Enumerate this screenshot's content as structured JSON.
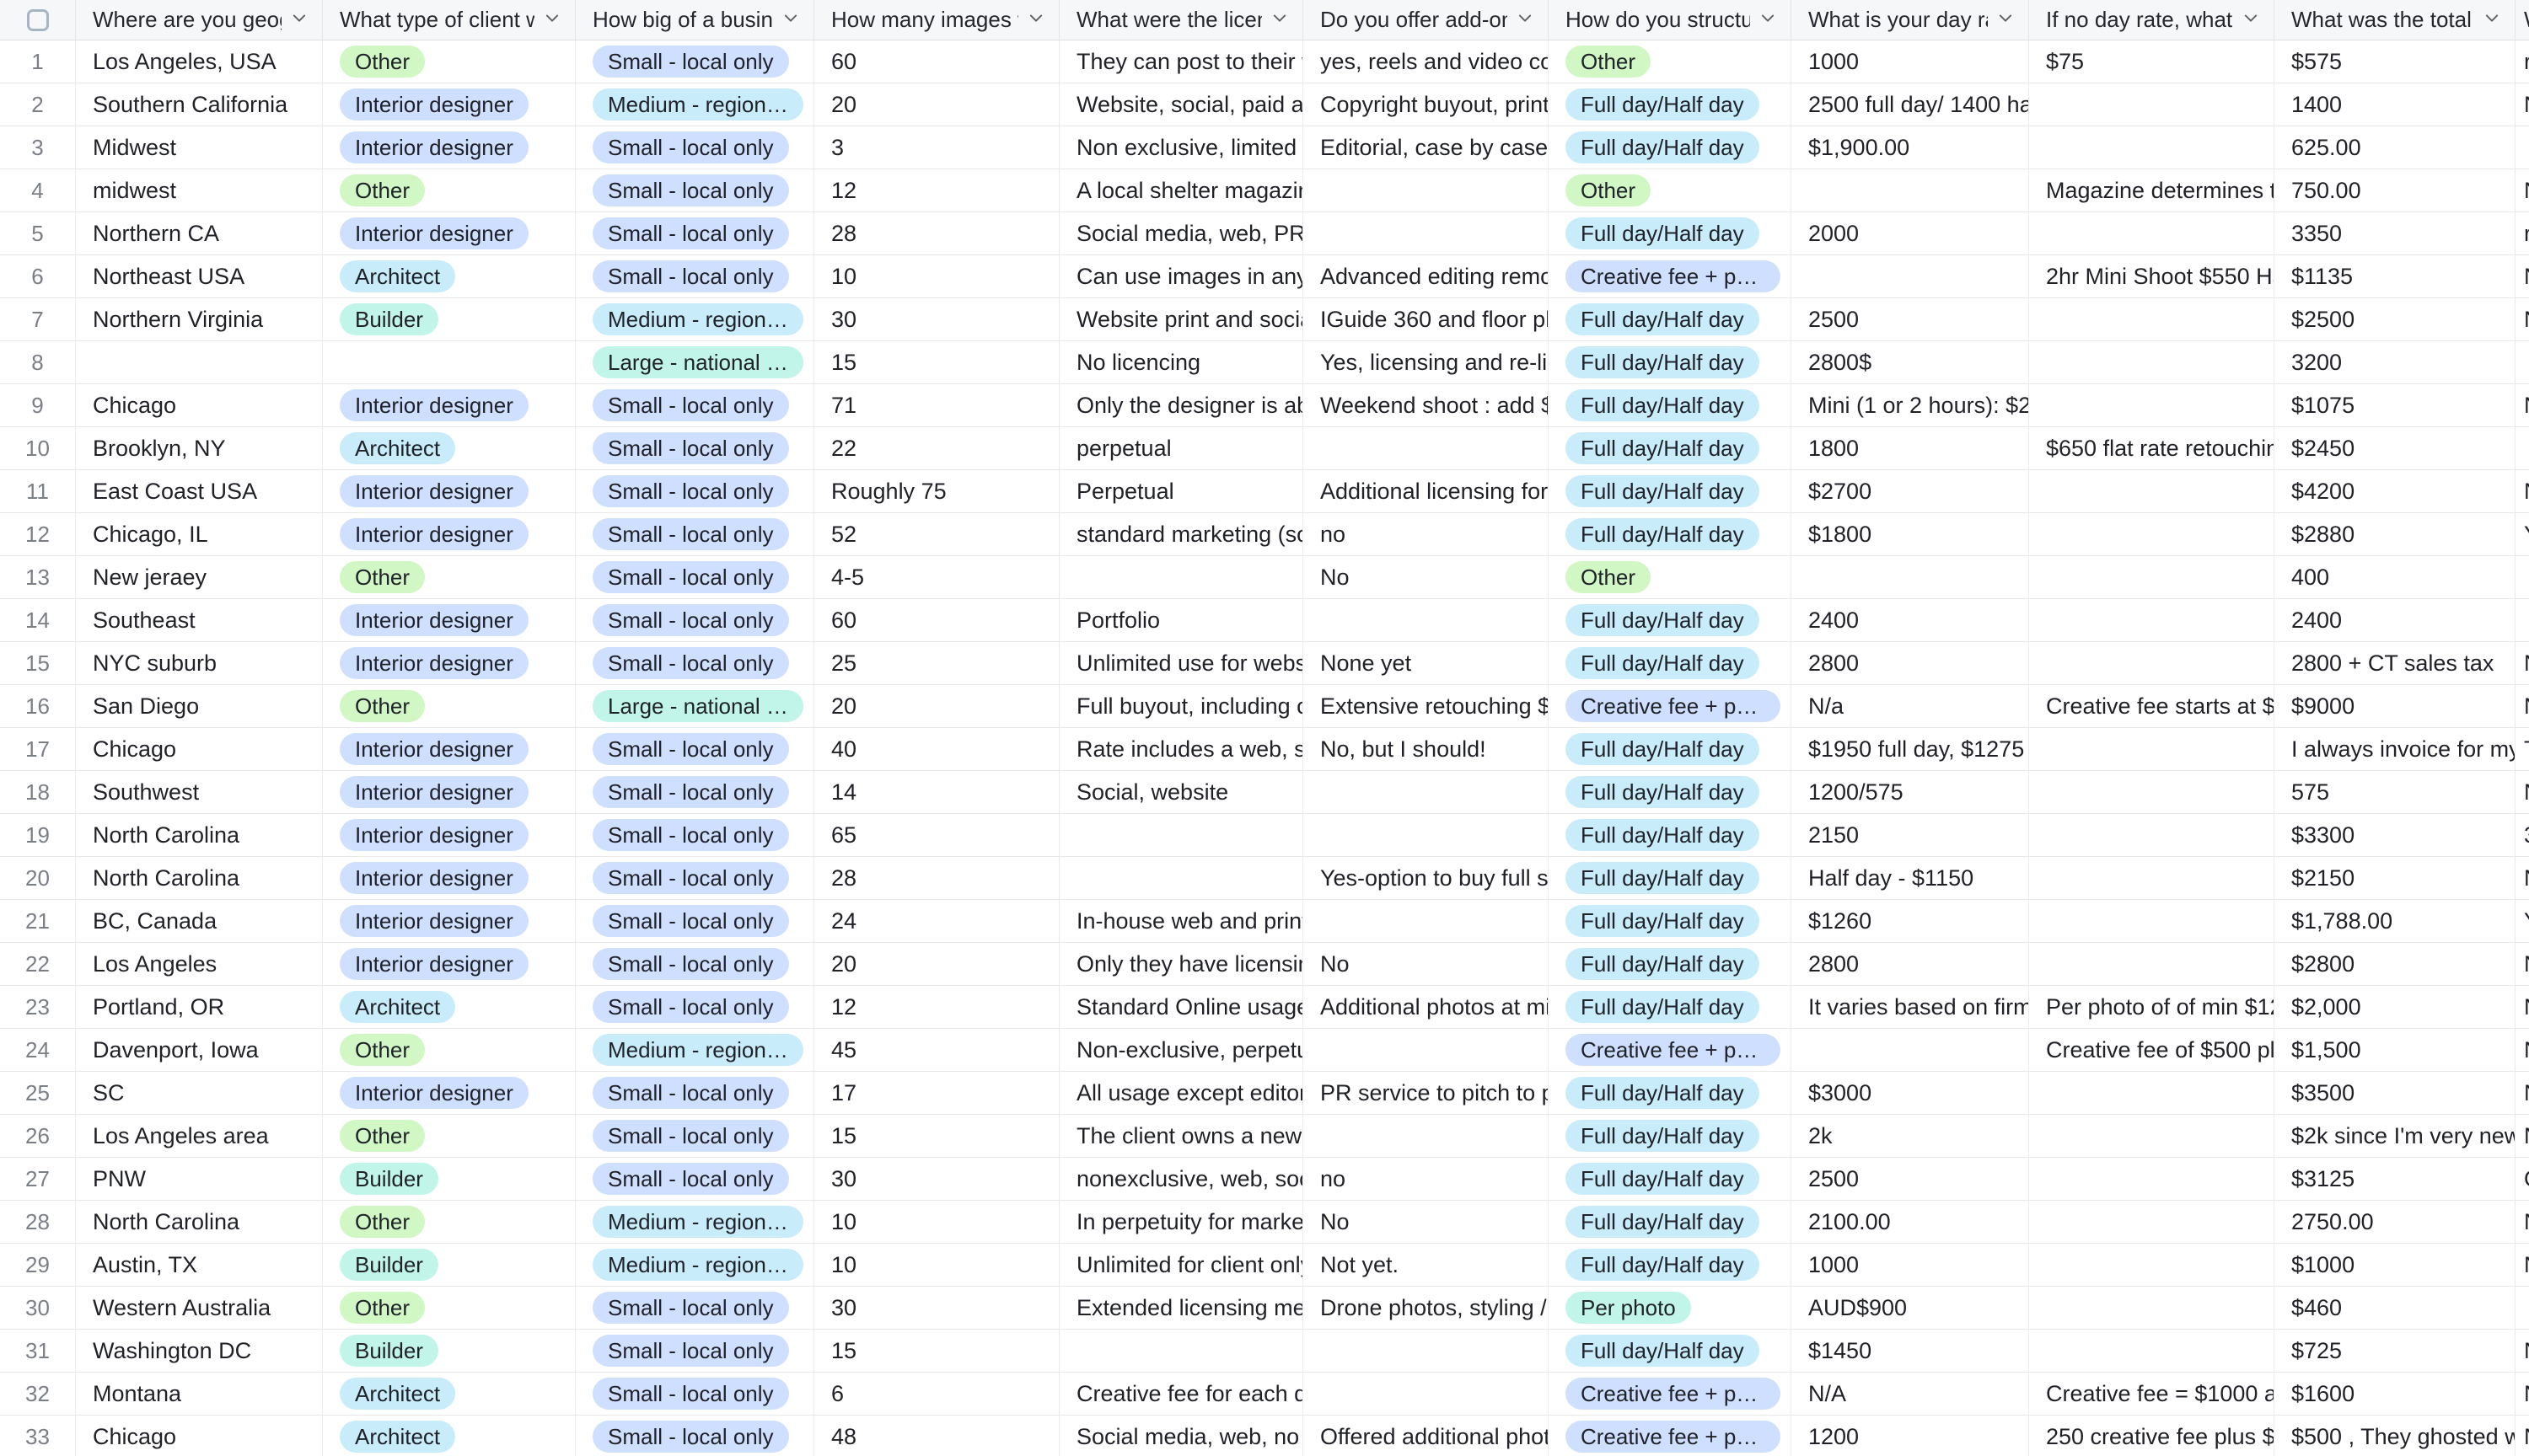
{
  "table": {
    "columns": [
      {
        "key": "num",
        "label": ""
      },
      {
        "key": "geo",
        "label": "Where are you geogra..."
      },
      {
        "key": "client",
        "label": "What type of client wa..."
      },
      {
        "key": "size",
        "label": "How big of a business ..."
      },
      {
        "key": "images",
        "label": "How many images wer..."
      },
      {
        "key": "licensing",
        "label": "What were the licensin..."
      },
      {
        "key": "addons",
        "label": "Do you offer add-ons? ..."
      },
      {
        "key": "structure",
        "label": "How do you structure t..."
      },
      {
        "key": "day_rate",
        "label": "What is your day rate?"
      },
      {
        "key": "no_day_rate",
        "label": "If no day rate, what is ..."
      },
      {
        "key": "total",
        "label": "What was the total inv..."
      },
      {
        "key": "last",
        "label": "W"
      }
    ],
    "badge_colors": {
      "green": "#d1f7c4",
      "blue": "#cfdfff",
      "cyan": "#c9ecfb",
      "teal": "#c2f5e9"
    },
    "badge_color_by_label": {
      "Other": "green",
      "Interior designer": "blue",
      "Architect": "cyan",
      "Builder": "teal",
      "Small - local only": "blue",
      "Medium - regional offi...": "cyan",
      "Large - national presen...": "teal",
      "Full day/Half day": "cyan",
      "Creative fee + per photo": "blue",
      "Per photo": "teal"
    },
    "rows": [
      {
        "num": "1",
        "geo": "Los Angeles, USA",
        "client": "Other",
        "size": "Small - local only",
        "images": "60",
        "licensing": "They can post to their we...",
        "addons": "yes, reels and video cont...",
        "structure": "Other",
        "day_rate": "1000",
        "no_day_rate": "$75",
        "total": "$575",
        "last": "r"
      },
      {
        "num": "2",
        "geo": "Southern California",
        "client": "Interior designer",
        "size": "Medium - regional offi...",
        "images": "20",
        "licensing": "Website, social, paid ads,...",
        "addons": "Copyright buyout, print p...",
        "structure": "Full day/Half day",
        "day_rate": "2500 full day/ 1400 half d...",
        "no_day_rate": "",
        "total": "1400",
        "last": "N"
      },
      {
        "num": "3",
        "geo": "Midwest",
        "client": "Interior designer",
        "size": "Small - local only",
        "images": "3",
        "licensing": "Non exclusive, limited usa...",
        "addons": "Editorial, case by case ba...",
        "structure": "Full day/Half day",
        "day_rate": "$1,900.00",
        "no_day_rate": "",
        "total": "625.00",
        "last": ""
      },
      {
        "num": "4",
        "geo": "midwest",
        "client": "Other",
        "size": "Small - local only",
        "images": "12",
        "licensing": "A local shelter magazine. ...",
        "addons": "",
        "structure": "Other",
        "day_rate": "",
        "no_day_rate": "Magazine determines the...",
        "total": "750.00",
        "last": "N"
      },
      {
        "num": "5",
        "geo": "Northern CA",
        "client": "Interior designer",
        "size": "Small - local only",
        "images": "28",
        "licensing": "Social media, web, PR use",
        "addons": "",
        "structure": "Full day/Half day",
        "day_rate": "2000",
        "no_day_rate": "",
        "total": "3350",
        "last": "r"
      },
      {
        "num": "6",
        "geo": "Northeast USA",
        "client": "Architect",
        "size": "Small - local only",
        "images": "10",
        "licensing": "Can use images in any for...",
        "addons": "Advanced editing removi...",
        "structure": "Creative fee + per photo",
        "day_rate": "",
        "no_day_rate": "2hr Mini Shoot $550 Half ...",
        "total": "$1135",
        "last": "N"
      },
      {
        "num": "7",
        "geo": "Northern Virginia",
        "client": "Builder",
        "size": "Medium - regional offi...",
        "images": "30",
        "licensing": "Website print and social ...",
        "addons": "IGuide 360 and floor plans",
        "structure": "Full day/Half day",
        "day_rate": "2500",
        "no_day_rate": "",
        "total": "$2500",
        "last": "N"
      },
      {
        "num": "8",
        "geo": "",
        "client": "",
        "size": "Large - national presen...",
        "images": "15",
        "licensing": "No licencing",
        "addons": "Yes, licensing and re-lice...",
        "structure": "Full day/Half day",
        "day_rate": "2800$",
        "no_day_rate": "",
        "total": "3200",
        "last": ""
      },
      {
        "num": "9",
        "geo": "Chicago",
        "client": "Interior designer",
        "size": "Small - local only",
        "images": "71",
        "licensing": "Only the designer is able ...",
        "addons": "Weekend shoot : add $10...",
        "structure": "Full day/Half day",
        "day_rate": "Mini (1 or 2 hours): $275/...",
        "no_day_rate": "",
        "total": "$1075",
        "last": "N"
      },
      {
        "num": "10",
        "geo": "Brooklyn, NY",
        "client": "Architect",
        "size": "Small - local only",
        "images": "22",
        "licensing": "perpetual",
        "addons": "",
        "structure": "Full day/Half day",
        "day_rate": "1800",
        "no_day_rate": "$650 flat rate retouching",
        "total": "$2450",
        "last": ""
      },
      {
        "num": "11",
        "geo": "East Coast USA",
        "client": "Interior designer",
        "size": "Small - local only",
        "images": "Roughly 75",
        "licensing": "Perpetual",
        "addons": "Additional licensing for p...",
        "structure": "Full day/Half day",
        "day_rate": "$2700",
        "no_day_rate": "",
        "total": "$4200",
        "last": "N"
      },
      {
        "num": "12",
        "geo": "Chicago, IL",
        "client": "Interior designer",
        "size": "Small - local only",
        "images": "52",
        "licensing": "standard marketing (soci...",
        "addons": "no",
        "structure": "Full day/Half day",
        "day_rate": "$1800",
        "no_day_rate": "",
        "total": "$2880",
        "last": "Y"
      },
      {
        "num": "13",
        "geo": "New jeraey",
        "client": "Other",
        "size": "Small - local only",
        "images": "4-5",
        "licensing": "",
        "addons": "No",
        "structure": "Other",
        "day_rate": "",
        "no_day_rate": "",
        "total": "400",
        "last": ""
      },
      {
        "num": "14",
        "geo": "Southeast",
        "client": "Interior designer",
        "size": "Small - local only",
        "images": "60",
        "licensing": "Portfolio",
        "addons": "",
        "structure": "Full day/Half day",
        "day_rate": "2400",
        "no_day_rate": "",
        "total": "2400",
        "last": ""
      },
      {
        "num": "15",
        "geo": "NYC suburb",
        "client": "Interior designer",
        "size": "Small - local only",
        "images": "25",
        "licensing": "Unlimited use for website...",
        "addons": "None yet",
        "structure": "Full day/Half day",
        "day_rate": "2800",
        "no_day_rate": "",
        "total": "2800 + CT sales tax",
        "last": "N"
      },
      {
        "num": "16",
        "geo": "San Diego",
        "client": "Other",
        "size": "Large - national presen...",
        "images": "20",
        "licensing": "Full buyout, including cop...",
        "addons": "Extensive retouching $10...",
        "structure": "Creative fee + per photo",
        "day_rate": "N/a",
        "no_day_rate": "Creative fee starts at $20...",
        "total": "$9000",
        "last": "N"
      },
      {
        "num": "17",
        "geo": "Chicago",
        "client": "Interior designer",
        "size": "Small - local only",
        "images": "40",
        "licensing": "Rate includes a web, soci...",
        "addons": "No, but I should!",
        "structure": "Full day/Half day",
        "day_rate": "$1950 full day, $1275 half...",
        "no_day_rate": "",
        "total": "I always invoice for my da...",
        "last": "T"
      },
      {
        "num": "18",
        "geo": "Southwest",
        "client": "Interior designer",
        "size": "Small - local only",
        "images": "14",
        "licensing": "Social, website",
        "addons": "",
        "structure": "Full day/Half day",
        "day_rate": "1200/575",
        "no_day_rate": "",
        "total": "575",
        "last": "N"
      },
      {
        "num": "19",
        "geo": "North Carolina",
        "client": "Interior designer",
        "size": "Small - local only",
        "images": "65",
        "licensing": "",
        "addons": "",
        "structure": "Full day/Half day",
        "day_rate": "2150",
        "no_day_rate": "",
        "total": "$3300",
        "last": "3"
      },
      {
        "num": "20",
        "geo": "North Carolina",
        "client": "Interior designer",
        "size": "Small - local only",
        "images": "28",
        "licensing": "",
        "addons": "Yes-option to buy full set ...",
        "structure": "Full day/Half day",
        "day_rate": "Half day - $1150",
        "no_day_rate": "",
        "total": "$2150",
        "last": "N"
      },
      {
        "num": "21",
        "geo": "BC, Canada",
        "client": "Interior designer",
        "size": "Small - local only",
        "images": "24",
        "licensing": "In-house web and print",
        "addons": "",
        "structure": "Full day/Half day",
        "day_rate": "$1260",
        "no_day_rate": "",
        "total": "$1,788.00",
        "last": "Y"
      },
      {
        "num": "22",
        "geo": "Los Angeles",
        "client": "Interior designer",
        "size": "Small - local only",
        "images": "20",
        "licensing": "Only they have licensing ...",
        "addons": "No",
        "structure": "Full day/Half day",
        "day_rate": "2800",
        "no_day_rate": "",
        "total": "$2800",
        "last": "N"
      },
      {
        "num": "23",
        "geo": "Portland, OR",
        "client": "Architect",
        "size": "Small - local only",
        "images": "12",
        "licensing": "Standard Online usage, pl...",
        "addons": "Additional photos at min ...",
        "structure": "Full day/Half day",
        "day_rate": "It varies based on firm siz...",
        "no_day_rate": "Per photo of of min $125/i...",
        "total": "$2,000",
        "last": "N"
      },
      {
        "num": "24",
        "geo": "Davenport, Iowa",
        "client": "Other",
        "size": "Medium - regional offi...",
        "images": "45",
        "licensing": "Non-exclusive, perpetual ...",
        "addons": "",
        "structure": "Creative fee + per photo",
        "day_rate": "",
        "no_day_rate": "Creative fee of $500 plus...",
        "total": "$1,500",
        "last": "N"
      },
      {
        "num": "25",
        "geo": "SC",
        "client": "Interior designer",
        "size": "Small - local only",
        "images": "17",
        "licensing": "All usage except editorial",
        "addons": "PR service to pitch to pub...",
        "structure": "Full day/Half day",
        "day_rate": "$3000",
        "no_day_rate": "",
        "total": "$3500",
        "last": "N"
      },
      {
        "num": "26",
        "geo": "Los Angeles area",
        "client": "Other",
        "size": "Small - local only",
        "images": "15",
        "licensing": "The client owns a new we...",
        "addons": "",
        "structure": "Full day/Half day",
        "day_rate": "2k",
        "no_day_rate": "",
        "total": "$2k since I'm very new to...",
        "last": "N"
      },
      {
        "num": "27",
        "geo": "PNW",
        "client": "Builder",
        "size": "Small - local only",
        "images": "30",
        "licensing": "nonexclusive, web, social,...",
        "addons": "no",
        "structure": "Full day/Half day",
        "day_rate": "2500",
        "no_day_rate": "",
        "total": "$3125",
        "last": "O"
      },
      {
        "num": "28",
        "geo": "North Carolina",
        "client": "Other",
        "size": "Medium - regional offi...",
        "images": "10",
        "licensing": "In perpetuity for marketin...",
        "addons": "No",
        "structure": "Full day/Half day",
        "day_rate": "2100.00",
        "no_day_rate": "",
        "total": "2750.00",
        "last": "N"
      },
      {
        "num": "29",
        "geo": "Austin, TX",
        "client": "Builder",
        "size": "Medium - regional offi...",
        "images": "10",
        "licensing": "Unlimited for client only.",
        "addons": "Not yet.",
        "structure": "Full day/Half day",
        "day_rate": "1000",
        "no_day_rate": "",
        "total": "$1000",
        "last": "N"
      },
      {
        "num": "30",
        "geo": "Western Australia",
        "client": "Other",
        "size": "Small - local only",
        "images": "30",
        "licensing": "Extended licensing meani...",
        "addons": "Drone photos, styling / st...",
        "structure": "Per photo",
        "day_rate": "AUD$900",
        "no_day_rate": "",
        "total": "$460",
        "last": ""
      },
      {
        "num": "31",
        "geo": "Washington DC",
        "client": "Builder",
        "size": "Small - local only",
        "images": "15",
        "licensing": "",
        "addons": "",
        "structure": "Full day/Half day",
        "day_rate": "$1450",
        "no_day_rate": "",
        "total": "$725",
        "last": "N"
      },
      {
        "num": "32",
        "geo": "Montana",
        "client": "Architect",
        "size": "Small - local only",
        "images": "6",
        "licensing": "Creative fee for each day ...",
        "addons": "",
        "structure": "Creative fee + per photo",
        "day_rate": "N/A",
        "no_day_rate": "Creative fee = $1000 a da...",
        "total": "$1600",
        "last": "N"
      },
      {
        "num": "33",
        "geo": "Chicago",
        "client": "Architect",
        "size": "Small - local only",
        "images": "48",
        "licensing": "Social media, web, no thir...",
        "addons": "Offered additional photos...",
        "structure": "Creative fee + per photo",
        "day_rate": "1200",
        "no_day_rate": "250 creative fee plus $40...",
        "total": "$500 , They ghosted whe...",
        "last": "N"
      }
    ]
  }
}
